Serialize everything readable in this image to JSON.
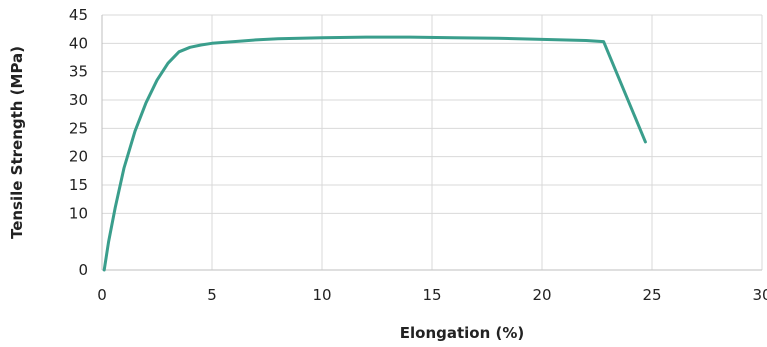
{
  "chart_data": {
    "type": "line",
    "title": "",
    "xlabel": "Elongation (%)",
    "ylabel": "Tensile Strength (MPa)",
    "xlim": [
      0,
      30
    ],
    "ylim": [
      0,
      45
    ],
    "x_ticks": [
      "0",
      "5",
      "10",
      "15",
      "20",
      "25",
      "30"
    ],
    "y_ticks": [
      "0",
      "10",
      "15",
      "20",
      "25",
      "30",
      "35",
      "40",
      "45"
    ],
    "y_tick_values": [
      0,
      10,
      15,
      20,
      25,
      30,
      35,
      40,
      45
    ],
    "grid": true,
    "legend": "none",
    "series": [
      {
        "color": "#3a9e8c",
        "x": [
          0.1,
          0.3,
          0.6,
          1.0,
          1.5,
          2.0,
          2.5,
          3.0,
          3.5,
          4.0,
          4.5,
          5.0,
          6.0,
          7.0,
          8.0,
          10.0,
          12.0,
          14.0,
          16.0,
          18.0,
          20.0,
          22.0,
          22.8,
          24.7
        ],
        "y": [
          0,
          5,
          11,
          18,
          24.5,
          29.5,
          33.5,
          36.5,
          38.5,
          39.3,
          39.7,
          40.0,
          40.3,
          40.6,
          40.8,
          41.0,
          41.1,
          41.1,
          41.0,
          40.9,
          40.7,
          40.5,
          40.3,
          22.6
        ]
      }
    ]
  }
}
